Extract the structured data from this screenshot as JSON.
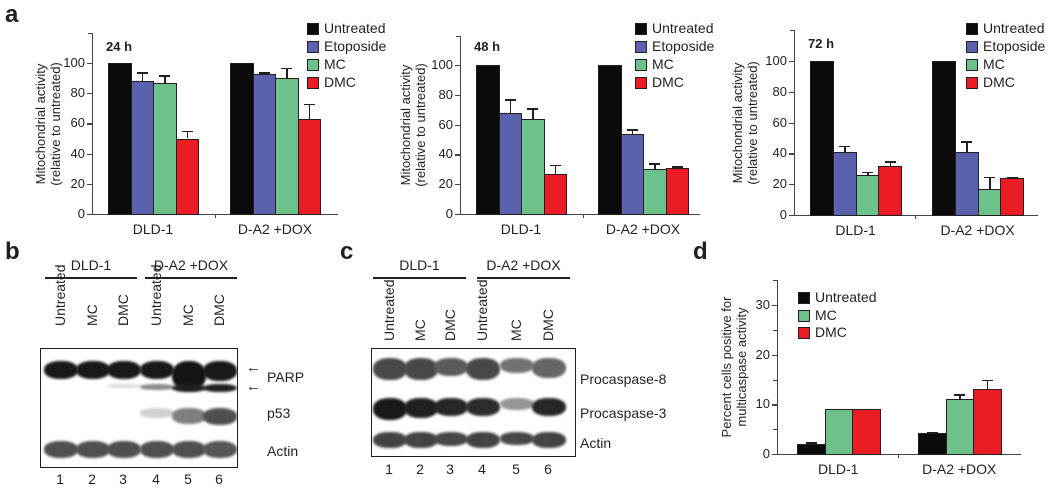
{
  "colors": {
    "untreated": "#0b0b0b",
    "etoposide": "#5b62ad",
    "mc": "#6cc28a",
    "dmc": "#ec1c24"
  },
  "panels": {
    "a": {
      "letter": "a"
    },
    "b": {
      "letter": "b"
    },
    "c": {
      "letter": "c"
    },
    "d": {
      "letter": "d"
    }
  },
  "chart_data": [
    {
      "panel": "a",
      "subpanel": "24 h",
      "type": "bar",
      "title": "24 h",
      "xlabel": "",
      "ylabel": "Mitochondrial activity (relative to untreated)",
      "ylabel_lines": [
        "Mitochondrial activity",
        "(relative to untreated)"
      ],
      "ylim": [
        0,
        120
      ],
      "yticks": [
        0,
        20,
        40,
        60,
        80,
        100
      ],
      "categories": [
        "DLD-1",
        "D-A2 +DOX"
      ],
      "legend": [
        "Untreated",
        "Etoposide",
        "MC",
        "DMC"
      ],
      "legend_position": "upper right",
      "series": [
        {
          "name": "Untreated",
          "values": [
            100,
            100
          ],
          "errors": [
            0,
            0
          ]
        },
        {
          "name": "Etoposide",
          "values": [
            88,
            93
          ],
          "errors": [
            6,
            1
          ]
        },
        {
          "name": "MC",
          "values": [
            87,
            90
          ],
          "errors": [
            5,
            7
          ]
        },
        {
          "name": "DMC",
          "values": [
            50,
            63
          ],
          "errors": [
            5,
            10
          ]
        }
      ]
    },
    {
      "panel": "a",
      "subpanel": "48 h",
      "type": "bar",
      "title": "48 h",
      "xlabel": "",
      "ylabel": "Mitochondrial activity (relative to untreated)",
      "ylabel_lines": [
        "Mitochondrial activity",
        "(relative to untreated)"
      ],
      "ylim": [
        0,
        120
      ],
      "yticks": [
        0,
        20,
        40,
        60,
        80,
        100
      ],
      "categories": [
        "DLD-1",
        "D-A2 +DOX"
      ],
      "legend": [
        "Untreated",
        "Etoposide",
        "MC",
        "DMC"
      ],
      "legend_position": "upper right",
      "series": [
        {
          "name": "Untreated",
          "values": [
            100,
            100
          ],
          "errors": [
            0,
            0
          ]
        },
        {
          "name": "Etoposide",
          "values": [
            68,
            54
          ],
          "errors": [
            9,
            3
          ]
        },
        {
          "name": "MC",
          "values": [
            64,
            30
          ],
          "errors": [
            7,
            4
          ]
        },
        {
          "name": "DMC",
          "values": [
            27,
            31
          ],
          "errors": [
            6,
            1
          ]
        }
      ]
    },
    {
      "panel": "a",
      "subpanel": "72 h",
      "type": "bar",
      "title": "72 h",
      "xlabel": "",
      "ylabel": "Mitochondrial activity (relative to untreated)",
      "ylabel_lines": [
        "Mitochondrial activity",
        "(relative to untreated)"
      ],
      "ylim": [
        0,
        120
      ],
      "yticks": [
        0,
        20,
        40,
        60,
        80,
        100
      ],
      "categories": [
        "DLD-1",
        "D-A2 +DOX"
      ],
      "legend": [
        "Untreated",
        "Etoposide",
        "MC",
        "DMC"
      ],
      "legend_position": "upper right",
      "series": [
        {
          "name": "Untreated",
          "values": [
            100,
            100
          ],
          "errors": [
            0,
            0
          ]
        },
        {
          "name": "Etoposide",
          "values": [
            41,
            41
          ],
          "errors": [
            4,
            7
          ]
        },
        {
          "name": "MC",
          "values": [
            26,
            17
          ],
          "errors": [
            2,
            8
          ]
        },
        {
          "name": "DMC",
          "values": [
            32,
            24
          ],
          "errors": [
            3,
            1
          ]
        }
      ]
    },
    {
      "panel": "d",
      "type": "bar",
      "title": "",
      "xlabel": "",
      "ylabel": "Percent cells positive for multicaspase activity",
      "ylabel_lines": [
        "Percent cells positive for",
        "multicaspase activity"
      ],
      "ylim": [
        0,
        35
      ],
      "yticks": [
        0,
        10,
        20,
        30
      ],
      "categories": [
        "DLD-1",
        "D-A2 +DOX"
      ],
      "legend": [
        "Untreated",
        "MC",
        "DMC"
      ],
      "legend_position": "upper left",
      "series": [
        {
          "name": "Untreated",
          "values": [
            2,
            4.3
          ],
          "errors": [
            0.4,
            0.2
          ]
        },
        {
          "name": "MC",
          "values": [
            9,
            11
          ],
          "errors": [
            0,
            1
          ]
        },
        {
          "name": "DMC",
          "values": [
            9,
            13
          ],
          "errors": [
            0,
            2
          ]
        }
      ]
    }
  ],
  "blots": {
    "b": {
      "groups": [
        "DLD-1",
        "D-A2 +DOX"
      ],
      "lanes": [
        "Untreated",
        "MC",
        "DMC",
        "Untreated",
        "MC",
        "DMC"
      ],
      "lane_numbers": [
        "1",
        "2",
        "3",
        "4",
        "5",
        "6"
      ],
      "band_labels": [
        "PARP",
        "p53",
        "Actin"
      ],
      "arrows": [
        "←",
        "←"
      ]
    },
    "c": {
      "groups": [
        "DLD-1",
        "D-A2 +DOX"
      ],
      "lanes": [
        "Untreated",
        "MC",
        "DMC",
        "Untreated",
        "MC",
        "DMC"
      ],
      "lane_numbers": [
        "1",
        "2",
        "3",
        "4",
        "5",
        "6"
      ],
      "band_labels": [
        "Procaspase-8",
        "Procaspase-3",
        "Actin"
      ]
    }
  }
}
